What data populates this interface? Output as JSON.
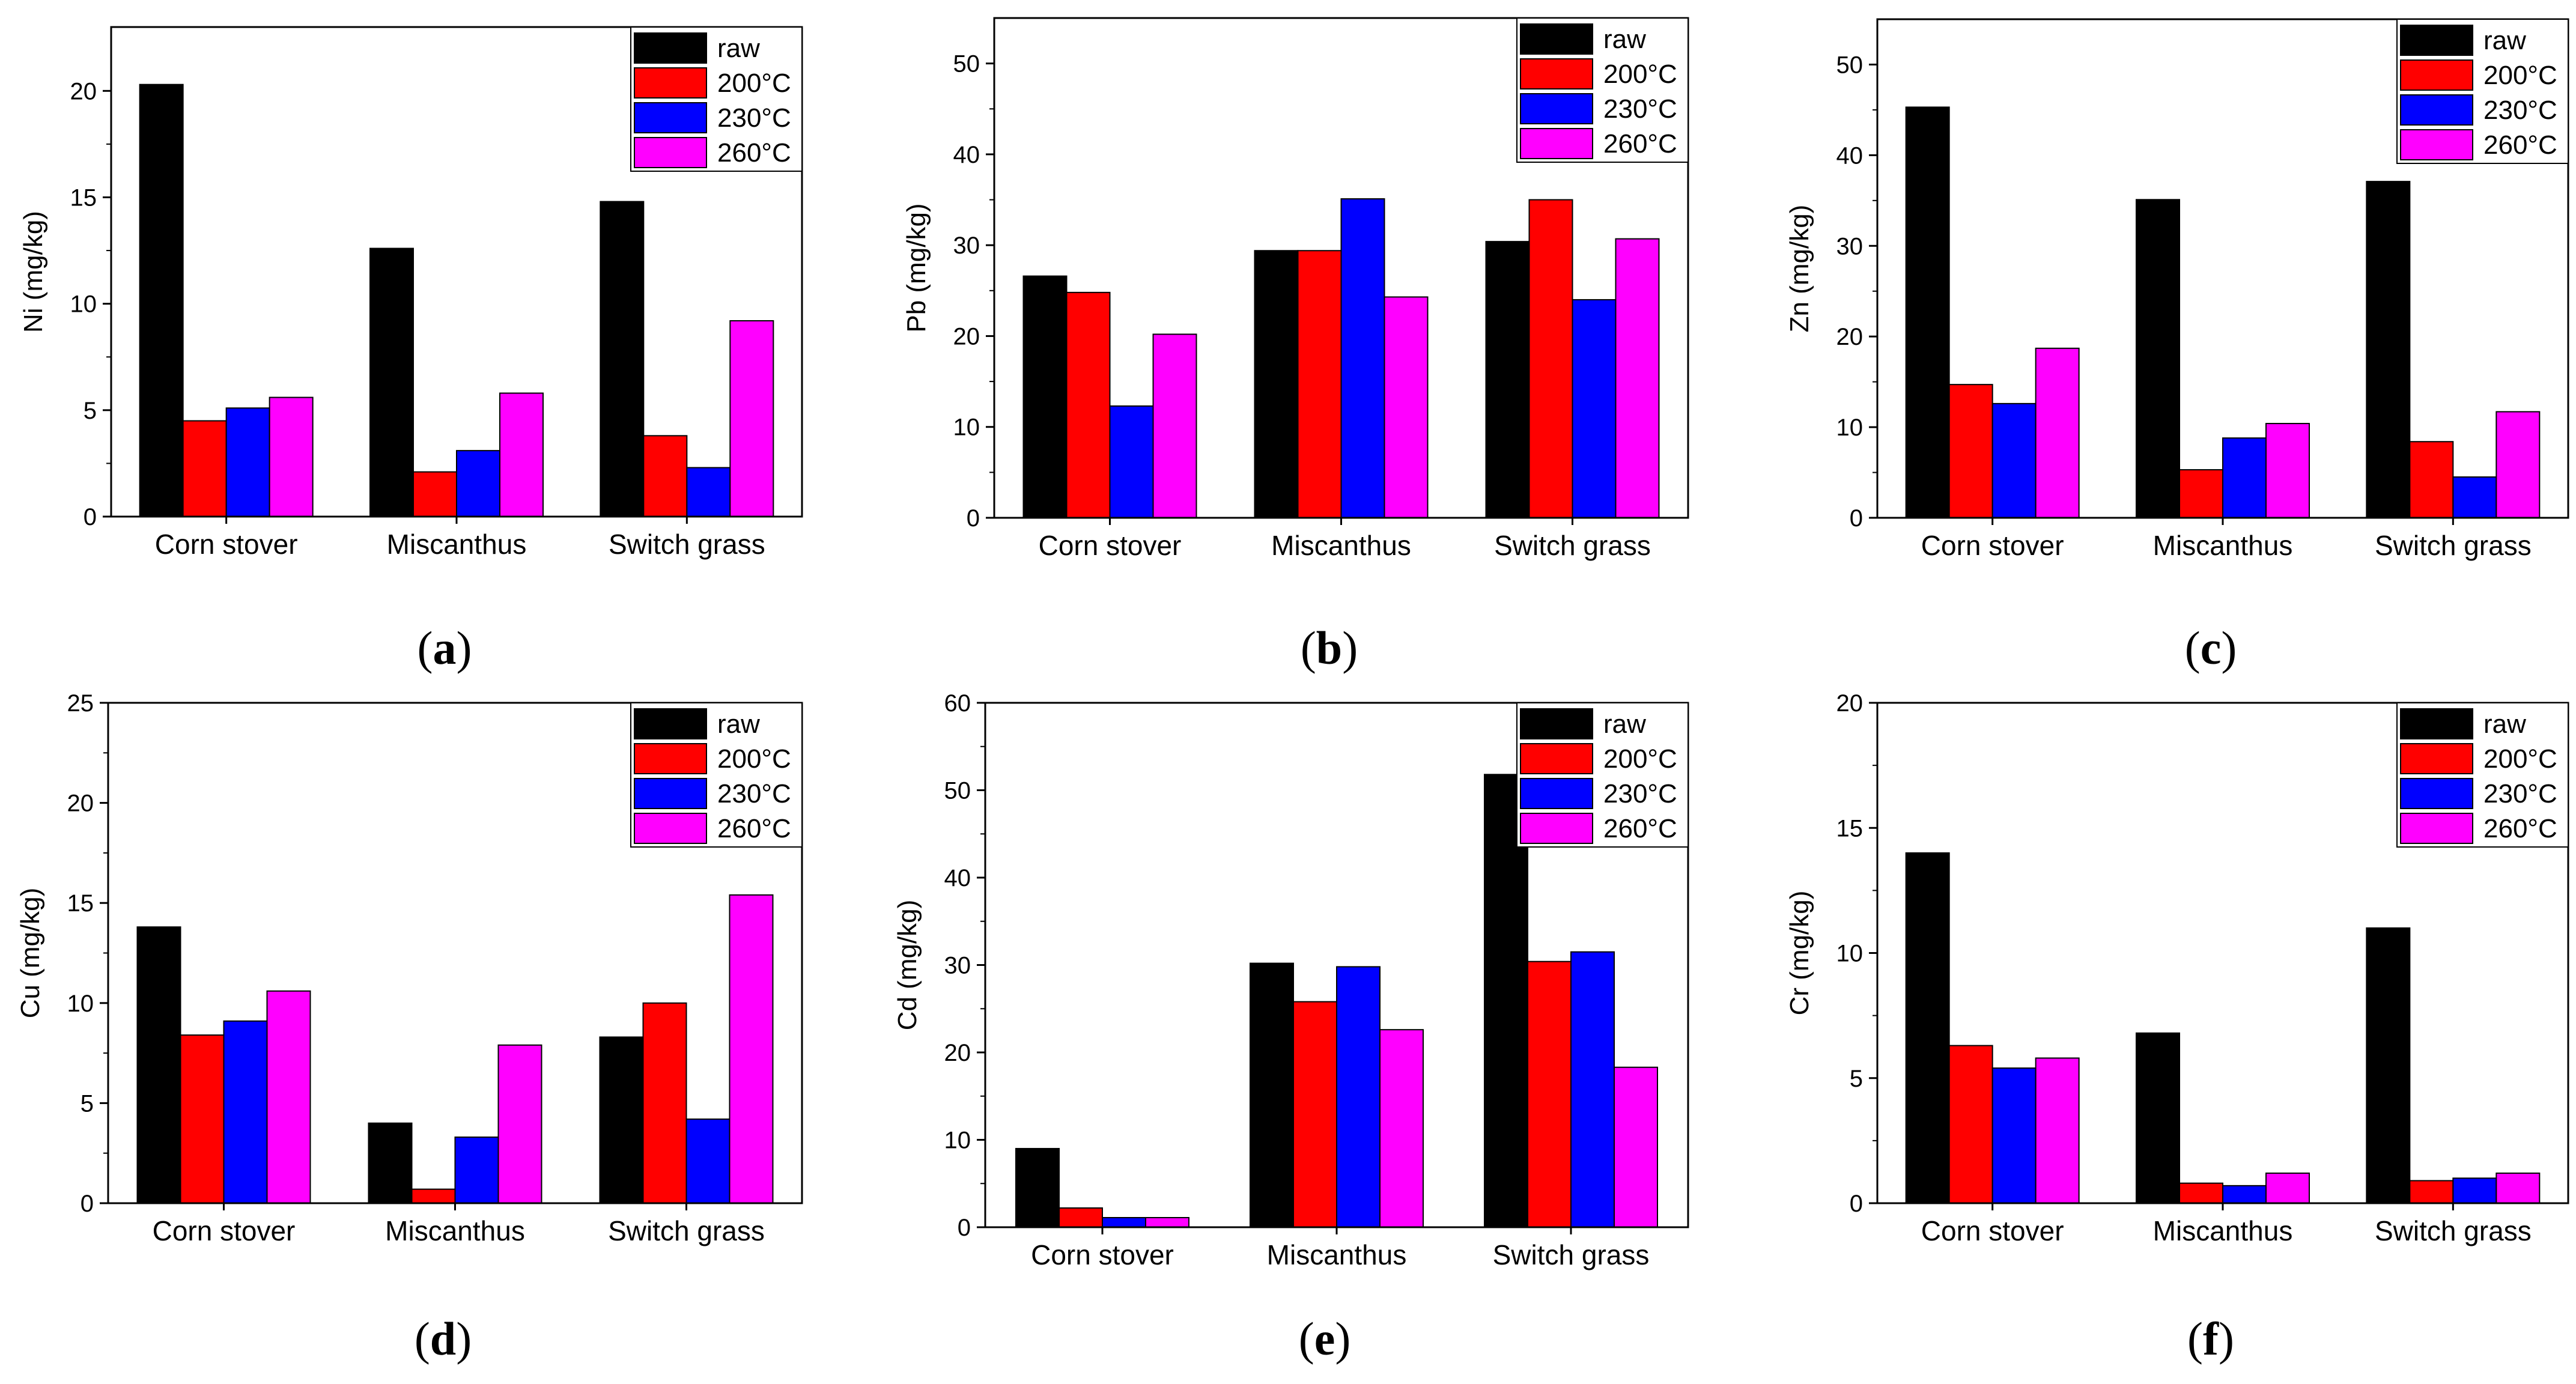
{
  "categories": [
    "Corn stover",
    "Miscanthus",
    "Switch grass"
  ],
  "series_names": [
    "raw",
    "200°C",
    "230°C",
    "260°C"
  ],
  "colors": {
    "raw": "#000000",
    "200°C": "#ff0000",
    "230°C": "#0000ff",
    "260°C": "#ff00ff"
  },
  "chart_data": [
    {
      "panel": "a",
      "caption_open": "(",
      "caption_letter": "a",
      "caption_close": ")",
      "type": "bar",
      "ylabel": "Ni (mg/kg)",
      "ylim": [
        0,
        23
      ],
      "yticks": [
        0,
        5,
        10,
        15,
        20
      ],
      "categories": [
        "Corn stover",
        "Miscanthus",
        "Switch grass"
      ],
      "legend_position": "top-right",
      "series": [
        {
          "name": "raw",
          "values": [
            20.3,
            12.6,
            14.8
          ]
        },
        {
          "name": "200°C",
          "values": [
            4.5,
            2.1,
            3.8
          ]
        },
        {
          "name": "230°C",
          "values": [
            5.1,
            3.1,
            2.3
          ]
        },
        {
          "name": "260°C",
          "values": [
            5.6,
            5.8,
            9.2
          ]
        }
      ]
    },
    {
      "panel": "b",
      "caption_open": "(",
      "caption_letter": "b",
      "caption_close": ")",
      "type": "bar",
      "ylabel": "Pb (mg/kg)",
      "ylim": [
        0,
        55
      ],
      "yticks": [
        0,
        10,
        20,
        30,
        40,
        50
      ],
      "categories": [
        "Corn stover",
        "Miscanthus",
        "Switch grass"
      ],
      "legend_position": "top-right",
      "series": [
        {
          "name": "raw",
          "values": [
            26.6,
            29.4,
            30.4
          ]
        },
        {
          "name": "200°C",
          "values": [
            24.8,
            29.4,
            35.0
          ]
        },
        {
          "name": "230°C",
          "values": [
            12.3,
            35.1,
            24.0
          ]
        },
        {
          "name": "260°C",
          "values": [
            20.2,
            24.3,
            30.7
          ]
        }
      ]
    },
    {
      "panel": "c",
      "caption_open": "(",
      "caption_letter": "c",
      "caption_close": ")",
      "type": "bar",
      "ylabel": "Zn (mg/kg)",
      "ylim": [
        0,
        55
      ],
      "yticks": [
        0,
        10,
        20,
        30,
        40,
        50
      ],
      "categories": [
        "Corn stover",
        "Miscanthus",
        "Switch grass"
      ],
      "legend_position": "top-right",
      "series": [
        {
          "name": "raw",
          "values": [
            45.3,
            35.1,
            37.1
          ]
        },
        {
          "name": "200°C",
          "values": [
            14.7,
            5.3,
            8.4
          ]
        },
        {
          "name": "230°C",
          "values": [
            12.6,
            8.8,
            4.5
          ]
        },
        {
          "name": "260°C",
          "values": [
            18.7,
            10.4,
            11.7
          ]
        }
      ]
    },
    {
      "panel": "d",
      "caption_open": "(",
      "caption_letter": "d",
      "caption_close": ")",
      "type": "bar",
      "ylabel": "Cu (mg/kg)",
      "ylim": [
        0,
        25
      ],
      "yticks": [
        0,
        5,
        10,
        15,
        20,
        25
      ],
      "categories": [
        "Corn stover",
        "Miscanthus",
        "Switch grass"
      ],
      "legend_position": "top-right",
      "series": [
        {
          "name": "raw",
          "values": [
            13.8,
            4.0,
            8.3
          ]
        },
        {
          "name": "200°C",
          "values": [
            8.4,
            0.7,
            10.0
          ]
        },
        {
          "name": "230°C",
          "values": [
            9.1,
            3.3,
            4.2
          ]
        },
        {
          "name": "260°C",
          "values": [
            10.6,
            7.9,
            15.4
          ]
        }
      ]
    },
    {
      "panel": "e",
      "caption_open": "(",
      "caption_letter": "e",
      "caption_close": ")",
      "type": "bar",
      "ylabel": "Cd (mg/kg)",
      "ylim": [
        0,
        60
      ],
      "yticks": [
        0,
        10,
        20,
        30,
        40,
        50,
        60
      ],
      "categories": [
        "Corn stover",
        "Miscanthus",
        "Switch grass"
      ],
      "legend_position": "top-right",
      "series": [
        {
          "name": "raw",
          "values": [
            9.0,
            30.2,
            51.8
          ]
        },
        {
          "name": "200°C",
          "values": [
            2.2,
            25.8,
            30.4
          ]
        },
        {
          "name": "230°C",
          "values": [
            1.1,
            29.8,
            31.5
          ]
        },
        {
          "name": "260°C",
          "values": [
            1.1,
            22.6,
            18.3
          ]
        }
      ]
    },
    {
      "panel": "f",
      "caption_open": "(",
      "caption_letter": "f",
      "caption_close": ")",
      "type": "bar",
      "ylabel": "Cr (mg/kg)",
      "ylim": [
        0,
        20
      ],
      "yticks": [
        0,
        5,
        10,
        15,
        20
      ],
      "categories": [
        "Corn stover",
        "Miscanthus",
        "Switch grass"
      ],
      "legend_position": "top-right",
      "series": [
        {
          "name": "raw",
          "values": [
            14.0,
            6.8,
            11.0
          ]
        },
        {
          "name": "200°C",
          "values": [
            6.3,
            0.8,
            0.9
          ]
        },
        {
          "name": "230°C",
          "values": [
            5.4,
            0.7,
            1.0
          ]
        },
        {
          "name": "260°C",
          "values": [
            5.8,
            1.2,
            1.2
          ]
        }
      ]
    }
  ]
}
